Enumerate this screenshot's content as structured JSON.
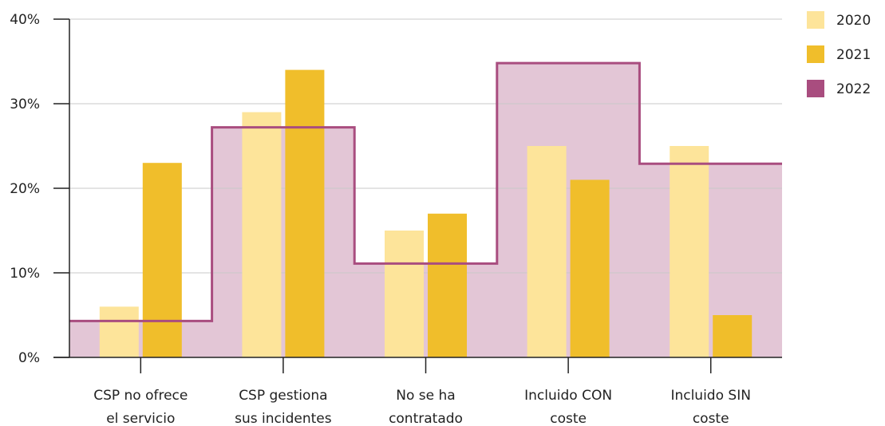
{
  "chart_data": {
    "type": "bar",
    "categories": [
      [
        "CSP no ofrece",
        "el servicio"
      ],
      [
        "CSP gestiona",
        "sus incidentes"
      ],
      [
        "No se ha",
        "contratado"
      ],
      [
        "Incluido CON",
        "coste"
      ],
      [
        "Incluido SIN",
        "coste"
      ]
    ],
    "series": [
      {
        "name": "2020",
        "render": "bar",
        "color": "#FDE49A",
        "values": [
          6,
          29,
          15,
          25,
          25
        ]
      },
      {
        "name": "2021",
        "render": "bar",
        "color": "#F0BE2B",
        "values": [
          23,
          34,
          17,
          21,
          5
        ]
      },
      {
        "name": "2022",
        "render": "step-area",
        "color": "#A94D7F",
        "fill": "#E3C6D6",
        "values": [
          4.3,
          27.2,
          11.1,
          34.8,
          22.9
        ]
      }
    ],
    "ylim": [
      0,
      40
    ],
    "yticks": [
      "0%",
      "10%",
      "20%",
      "30%",
      "40%"
    ],
    "ytick_values": [
      0,
      10,
      20,
      30,
      40
    ],
    "grid": true,
    "legend_position": "top-right"
  }
}
